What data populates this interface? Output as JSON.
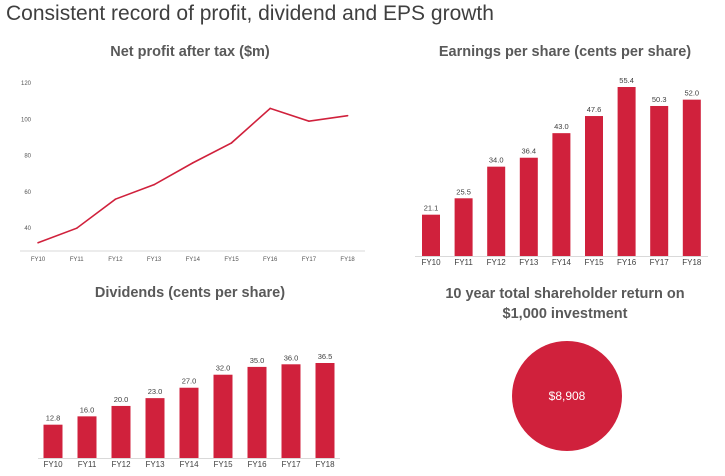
{
  "page": {
    "title": "Consistent record of profit, dividend and EPS growth"
  },
  "colors": {
    "accent": "#d0213c",
    "axis": "#d9d9d9",
    "text": "#595959"
  },
  "chart_data": [
    {
      "id": "net-profit",
      "type": "line",
      "title": "Net profit after tax ($m)",
      "categories": [
        "FY10",
        "FY11",
        "FY12",
        "FY13",
        "FY14",
        "FY15",
        "FY16",
        "FY17",
        "FY18"
      ],
      "values": [
        32,
        40,
        56,
        64,
        76,
        87,
        106,
        99,
        102
      ],
      "yticks": [
        40,
        60,
        80,
        100,
        120
      ],
      "ylim": [
        28,
        120
      ],
      "grid": false,
      "color": "#d0213c"
    },
    {
      "id": "eps",
      "type": "bar",
      "title": "Earnings per share (cents per share)",
      "categories": [
        "FY10",
        "FY11",
        "FY12",
        "FY13",
        "FY14",
        "FY15",
        "FY16",
        "FY17",
        "FY18"
      ],
      "values": [
        21.1,
        25.5,
        34.0,
        36.4,
        43.0,
        47.6,
        55.4,
        50.3,
        52.0
      ],
      "labels": [
        "21.1",
        "25.5",
        "34.0",
        "36.4",
        "43.0",
        "47.6",
        "55.4",
        "50.3",
        "52.0"
      ],
      "ylim": [
        10,
        55.4
      ],
      "grid": false,
      "color": "#d0213c"
    },
    {
      "id": "dividends",
      "type": "bar",
      "title": "Dividends (cents per share)",
      "categories": [
        "FY10",
        "FY11",
        "FY12",
        "FY13",
        "FY14",
        "FY15",
        "FY16",
        "FY17",
        "FY18"
      ],
      "values": [
        12.8,
        16.0,
        20.0,
        23.0,
        27.0,
        32.0,
        35.0,
        36.0,
        36.5
      ],
      "labels": [
        "12.8",
        "16.0",
        "20.0",
        "23.0",
        "27.0",
        "32.0",
        "35.0",
        "36.0",
        "36.5"
      ],
      "ylim": [
        0,
        36.5
      ],
      "grid": false,
      "color": "#d0213c"
    },
    {
      "id": "tsr",
      "type": "pie",
      "title_line1": "10 year total shareholder return on",
      "title_line2": "$1,000 investment",
      "value_label": "$8,908",
      "color": "#d0213c"
    }
  ]
}
